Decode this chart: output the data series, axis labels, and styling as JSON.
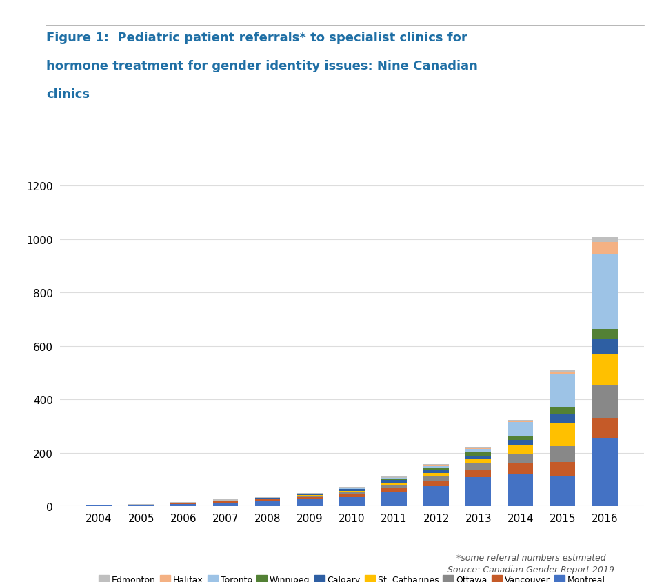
{
  "years": [
    2004,
    2005,
    2006,
    2007,
    2008,
    2009,
    2010,
    2011,
    2012,
    2013,
    2014,
    2015,
    2016
  ],
  "cities": [
    "Montreal",
    "Vancouver",
    "Ottawa",
    "St. Catharines",
    "Calgary",
    "Winnipeg",
    "Toronto",
    "Halifax",
    "Edmonton"
  ],
  "colors": {
    "Montreal": "#4472C4",
    "Vancouver": "#C55A28",
    "Ottawa": "#888888",
    "St. Catharines": "#FFC000",
    "Calgary": "#2E5FA3",
    "Winnipeg": "#538135",
    "Toronto": "#9DC3E6",
    "Halifax": "#F4B183",
    "Edmonton": "#BFBFBF"
  },
  "data": {
    "Montreal": [
      3,
      5,
      8,
      14,
      20,
      25,
      35,
      55,
      75,
      110,
      120,
      115,
      255
    ],
    "Vancouver": [
      0,
      0,
      5,
      5,
      5,
      8,
      10,
      15,
      20,
      28,
      40,
      50,
      75
    ],
    "Ottawa": [
      0,
      0,
      0,
      2,
      3,
      5,
      8,
      10,
      18,
      22,
      35,
      60,
      125
    ],
    "St. Catharines": [
      0,
      0,
      0,
      0,
      0,
      4,
      5,
      8,
      12,
      18,
      32,
      85,
      115
    ],
    "Calgary": [
      0,
      0,
      0,
      0,
      3,
      4,
      6,
      10,
      10,
      12,
      20,
      35,
      55
    ],
    "Winnipeg": [
      0,
      0,
      0,
      0,
      0,
      0,
      2,
      4,
      7,
      12,
      18,
      28,
      40
    ],
    "Toronto": [
      0,
      0,
      0,
      0,
      0,
      0,
      3,
      5,
      8,
      12,
      50,
      120,
      280
    ],
    "Halifax": [
      0,
      0,
      0,
      0,
      0,
      0,
      0,
      0,
      3,
      4,
      4,
      12,
      45
    ],
    "Edmonton": [
      1,
      2,
      3,
      4,
      4,
      4,
      4,
      4,
      5,
      5,
      5,
      5,
      20
    ]
  },
  "title_line1": "Figure 1:  Pediatric patient referrals* to specialist clinics for",
  "title_line2": "hormone treatment for gender identity issues: Nine Canadian",
  "title_line3": "clinics",
  "title_color": "#1F6FA5",
  "ylim": [
    0,
    1200
  ],
  "yticks": [
    0,
    200,
    400,
    600,
    800,
    1000,
    1200
  ],
  "footnote1": "*some referral numbers estimated",
  "footnote2": "Source: Canadian Gender Report 2019",
  "background_color": "#FFFFFF",
  "gridcolor": "#DDDDDD",
  "legend_order": [
    "Edmonton",
    "Halifax",
    "Toronto",
    "Winnipeg",
    "Calgary",
    "St. Catharines",
    "Ottawa",
    "Vancouver",
    "Montreal"
  ]
}
